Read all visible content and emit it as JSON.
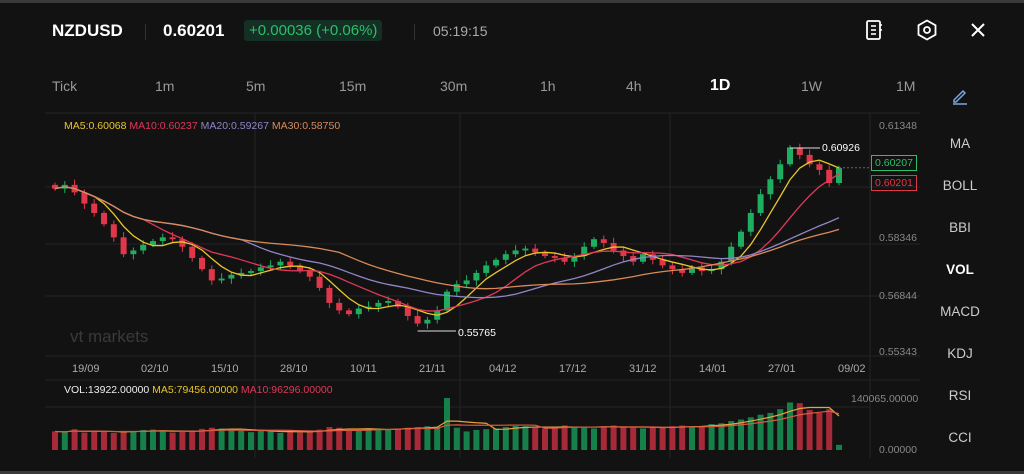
{
  "header": {
    "symbol": "NZDUSD",
    "price": "0.60201",
    "change": "+0.00036 (+0.06%)",
    "time": "05:19:15",
    "icons": [
      "notebook-icon",
      "settings-hexagon-icon",
      "close-icon"
    ]
  },
  "tabs": [
    {
      "label": "Tick"
    },
    {
      "label": "1m"
    },
    {
      "label": "5m"
    },
    {
      "label": "15m"
    },
    {
      "label": "30m"
    },
    {
      "label": "1h"
    },
    {
      "label": "4h"
    },
    {
      "label": "1D",
      "active": true
    },
    {
      "label": "1W"
    },
    {
      "label": "1M"
    }
  ],
  "indicators_menu": [
    {
      "label": "MA"
    },
    {
      "label": "BOLL"
    },
    {
      "label": "BBI"
    },
    {
      "label": "VOL"
    },
    {
      "label": "MACD"
    },
    {
      "label": "KDJ"
    },
    {
      "label": "RSI"
    },
    {
      "label": "CCI"
    }
  ],
  "ma_legend": {
    "ma5": "MA5:0.60068",
    "ma10": "MA10:0.60237",
    "ma20": "MA20:0.59267",
    "ma30": "MA30:0.58750"
  },
  "vol_legend": {
    "vol": "VOL:13922.00000",
    "ma5": "MA5:79456.00000",
    "ma10": "MA10:96296.00000"
  },
  "watermark": "vt markets",
  "colors": {
    "up": "#1fae5f",
    "down": "#e0384a",
    "ma5": "#e8c52a",
    "ma10": "#e0385a",
    "ma20": "#8f86c9",
    "ma30": "#d98a5a"
  },
  "chart_data": {
    "type": "candlestick",
    "price_axis": [
      "0.61348",
      "0.58346",
      "0.56844",
      "0.55343"
    ],
    "ylim": [
      0.55343,
      0.61348
    ],
    "date_labels": [
      "19/09",
      "02/10",
      "15/10",
      "28/10",
      "10/11",
      "21/11",
      "04/12",
      "17/12",
      "31/12",
      "14/01",
      "27/01",
      "09/02"
    ],
    "high_label": "0.60926",
    "low_label": "0.55765",
    "bid_tag": "0.60207",
    "ask_tag": "0.60201",
    "closes": [
      0.5965,
      0.5975,
      0.5955,
      0.5925,
      0.59,
      0.587,
      0.5835,
      0.579,
      0.58,
      0.5815,
      0.5825,
      0.5835,
      0.583,
      0.581,
      0.578,
      0.575,
      0.572,
      0.5725,
      0.5735,
      0.574,
      0.5745,
      0.5755,
      0.576,
      0.577,
      0.576,
      0.5745,
      0.573,
      0.57,
      0.566,
      0.564,
      0.563,
      0.5645,
      0.565,
      0.566,
      0.5665,
      0.565,
      0.5625,
      0.5605,
      0.5615,
      0.564,
      0.569,
      0.571,
      0.572,
      0.574,
      0.576,
      0.5775,
      0.579,
      0.58,
      0.5805,
      0.5795,
      0.5785,
      0.578,
      0.577,
      0.5785,
      0.581,
      0.583,
      0.582,
      0.58,
      0.5785,
      0.577,
      0.579,
      0.5775,
      0.576,
      0.575,
      0.574,
      0.5755,
      0.5745,
      0.575,
      0.577,
      0.581,
      0.585,
      0.59,
      0.595,
      0.599,
      0.603,
      0.6075,
      0.6055,
      0.603,
      0.6015,
      0.598,
      0.602
    ],
    "volume_axis": [
      "140065.00000",
      "0.00000"
    ],
    "volumes": [
      50000,
      48000,
      56000,
      47000,
      52000,
      49000,
      46000,
      50000,
      51000,
      54000,
      55000,
      50000,
      47000,
      49000,
      52000,
      57000,
      60000,
      58000,
      55000,
      52000,
      48000,
      53000,
      50000,
      46000,
      50000,
      47000,
      52000,
      55000,
      62000,
      60000,
      54000,
      52000,
      58000,
      57000,
      55000,
      58000,
      60000,
      62000,
      64000,
      63000,
      140000,
      60000,
      50000,
      54000,
      56000,
      58000,
      62000,
      65000,
      64000,
      60000,
      58000,
      62000,
      66000,
      63000,
      60000,
      58000,
      64000,
      66000,
      62000,
      60000,
      58000,
      62000,
      60000,
      64000,
      66000,
      62000,
      65000,
      70000,
      72000,
      78000,
      82000,
      88000,
      95000,
      100000,
      110000,
      128000,
      126000,
      108000,
      100000,
      110000,
      13922
    ]
  }
}
